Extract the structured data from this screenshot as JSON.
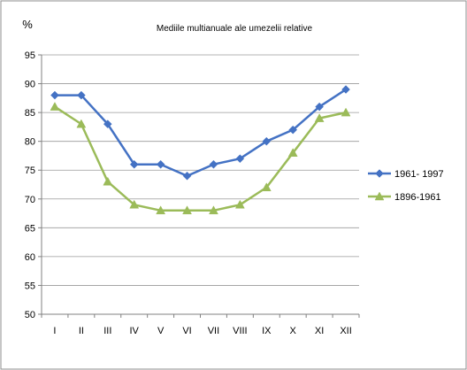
{
  "chart_data": {
    "type": "line",
    "title": "Mediile multianuale ale umezelii relative",
    "ylabel": "%",
    "xlabel": "",
    "categories": [
      "I",
      "II",
      "III",
      "IV",
      "V",
      "VI",
      "VII",
      "VIII",
      "IX",
      "X",
      "XI",
      "XII"
    ],
    "ylim": [
      50,
      95
    ],
    "yticks": [
      "50",
      "55",
      "60",
      "65",
      "70",
      "75",
      "80",
      "85",
      "90",
      "95"
    ],
    "grid": true,
    "legend_position": "right",
    "series": [
      {
        "name": "1961- 1997",
        "marker": "diamond",
        "color": "#4472C4",
        "values": [
          88,
          88,
          83,
          76,
          76,
          74,
          76,
          77,
          80,
          82,
          86,
          89
        ]
      },
      {
        "name": "1896-1961",
        "marker": "triangle",
        "color": "#9BBB59",
        "values": [
          86,
          83,
          73,
          69,
          68,
          68,
          68,
          69,
          72,
          78,
          84,
          85
        ]
      }
    ]
  }
}
